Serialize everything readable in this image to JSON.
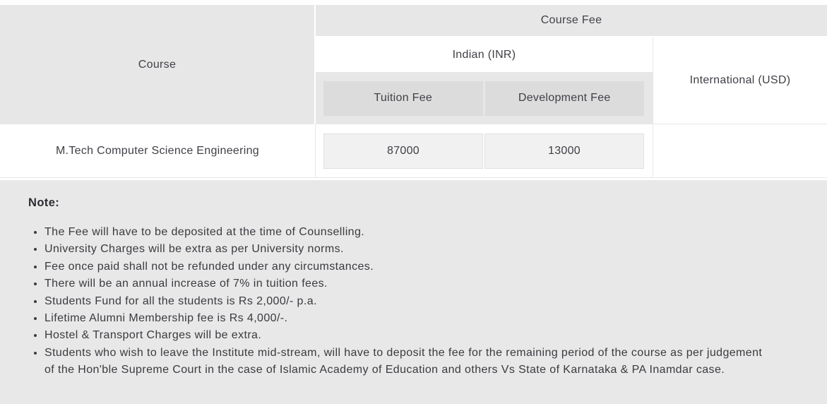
{
  "colors": {
    "header_cell_bg": "#e7e7e7",
    "subheader_box_bg": "#dcdcdc",
    "value_box_bg": "#f1f1f1",
    "value_box_border": "#e1e1e1",
    "note_section_bg": "#e8e8e8",
    "text": "#3f3f46"
  },
  "fee_table": {
    "headers": {
      "course": "Course",
      "course_fee": "Course Fee",
      "indian": "Indian (INR)",
      "tuition_fee": "Tuition Fee",
      "development_fee": "Development Fee",
      "international": "International (USD)"
    },
    "rows": [
      {
        "course": "M.Tech Computer Science Engineering",
        "tuition_fee": "87000",
        "development_fee": "13000",
        "international": ""
      }
    ]
  },
  "note": {
    "title": "Note:",
    "items": [
      "The Fee will have to be deposited at the time of Counselling.",
      "University Charges will be extra as per University norms.",
      "Fee once paid shall not be refunded under any circumstances.",
      "There will be an annual increase of 7% in tuition fees.",
      "Students Fund for all the students is Rs 2,000/- p.a.",
      "Lifetime Alumni Membership fee is Rs 4,000/-.",
      "Hostel & Transport Charges will be extra.",
      "Students who wish to leave the Institute mid-stream, will have to deposit the fee for the remaining period of the course as per judgement of the Hon'ble Supreme Court in the case of Islamic Academy of Education and others Vs State of Karnataka & PA Inamdar case."
    ]
  }
}
